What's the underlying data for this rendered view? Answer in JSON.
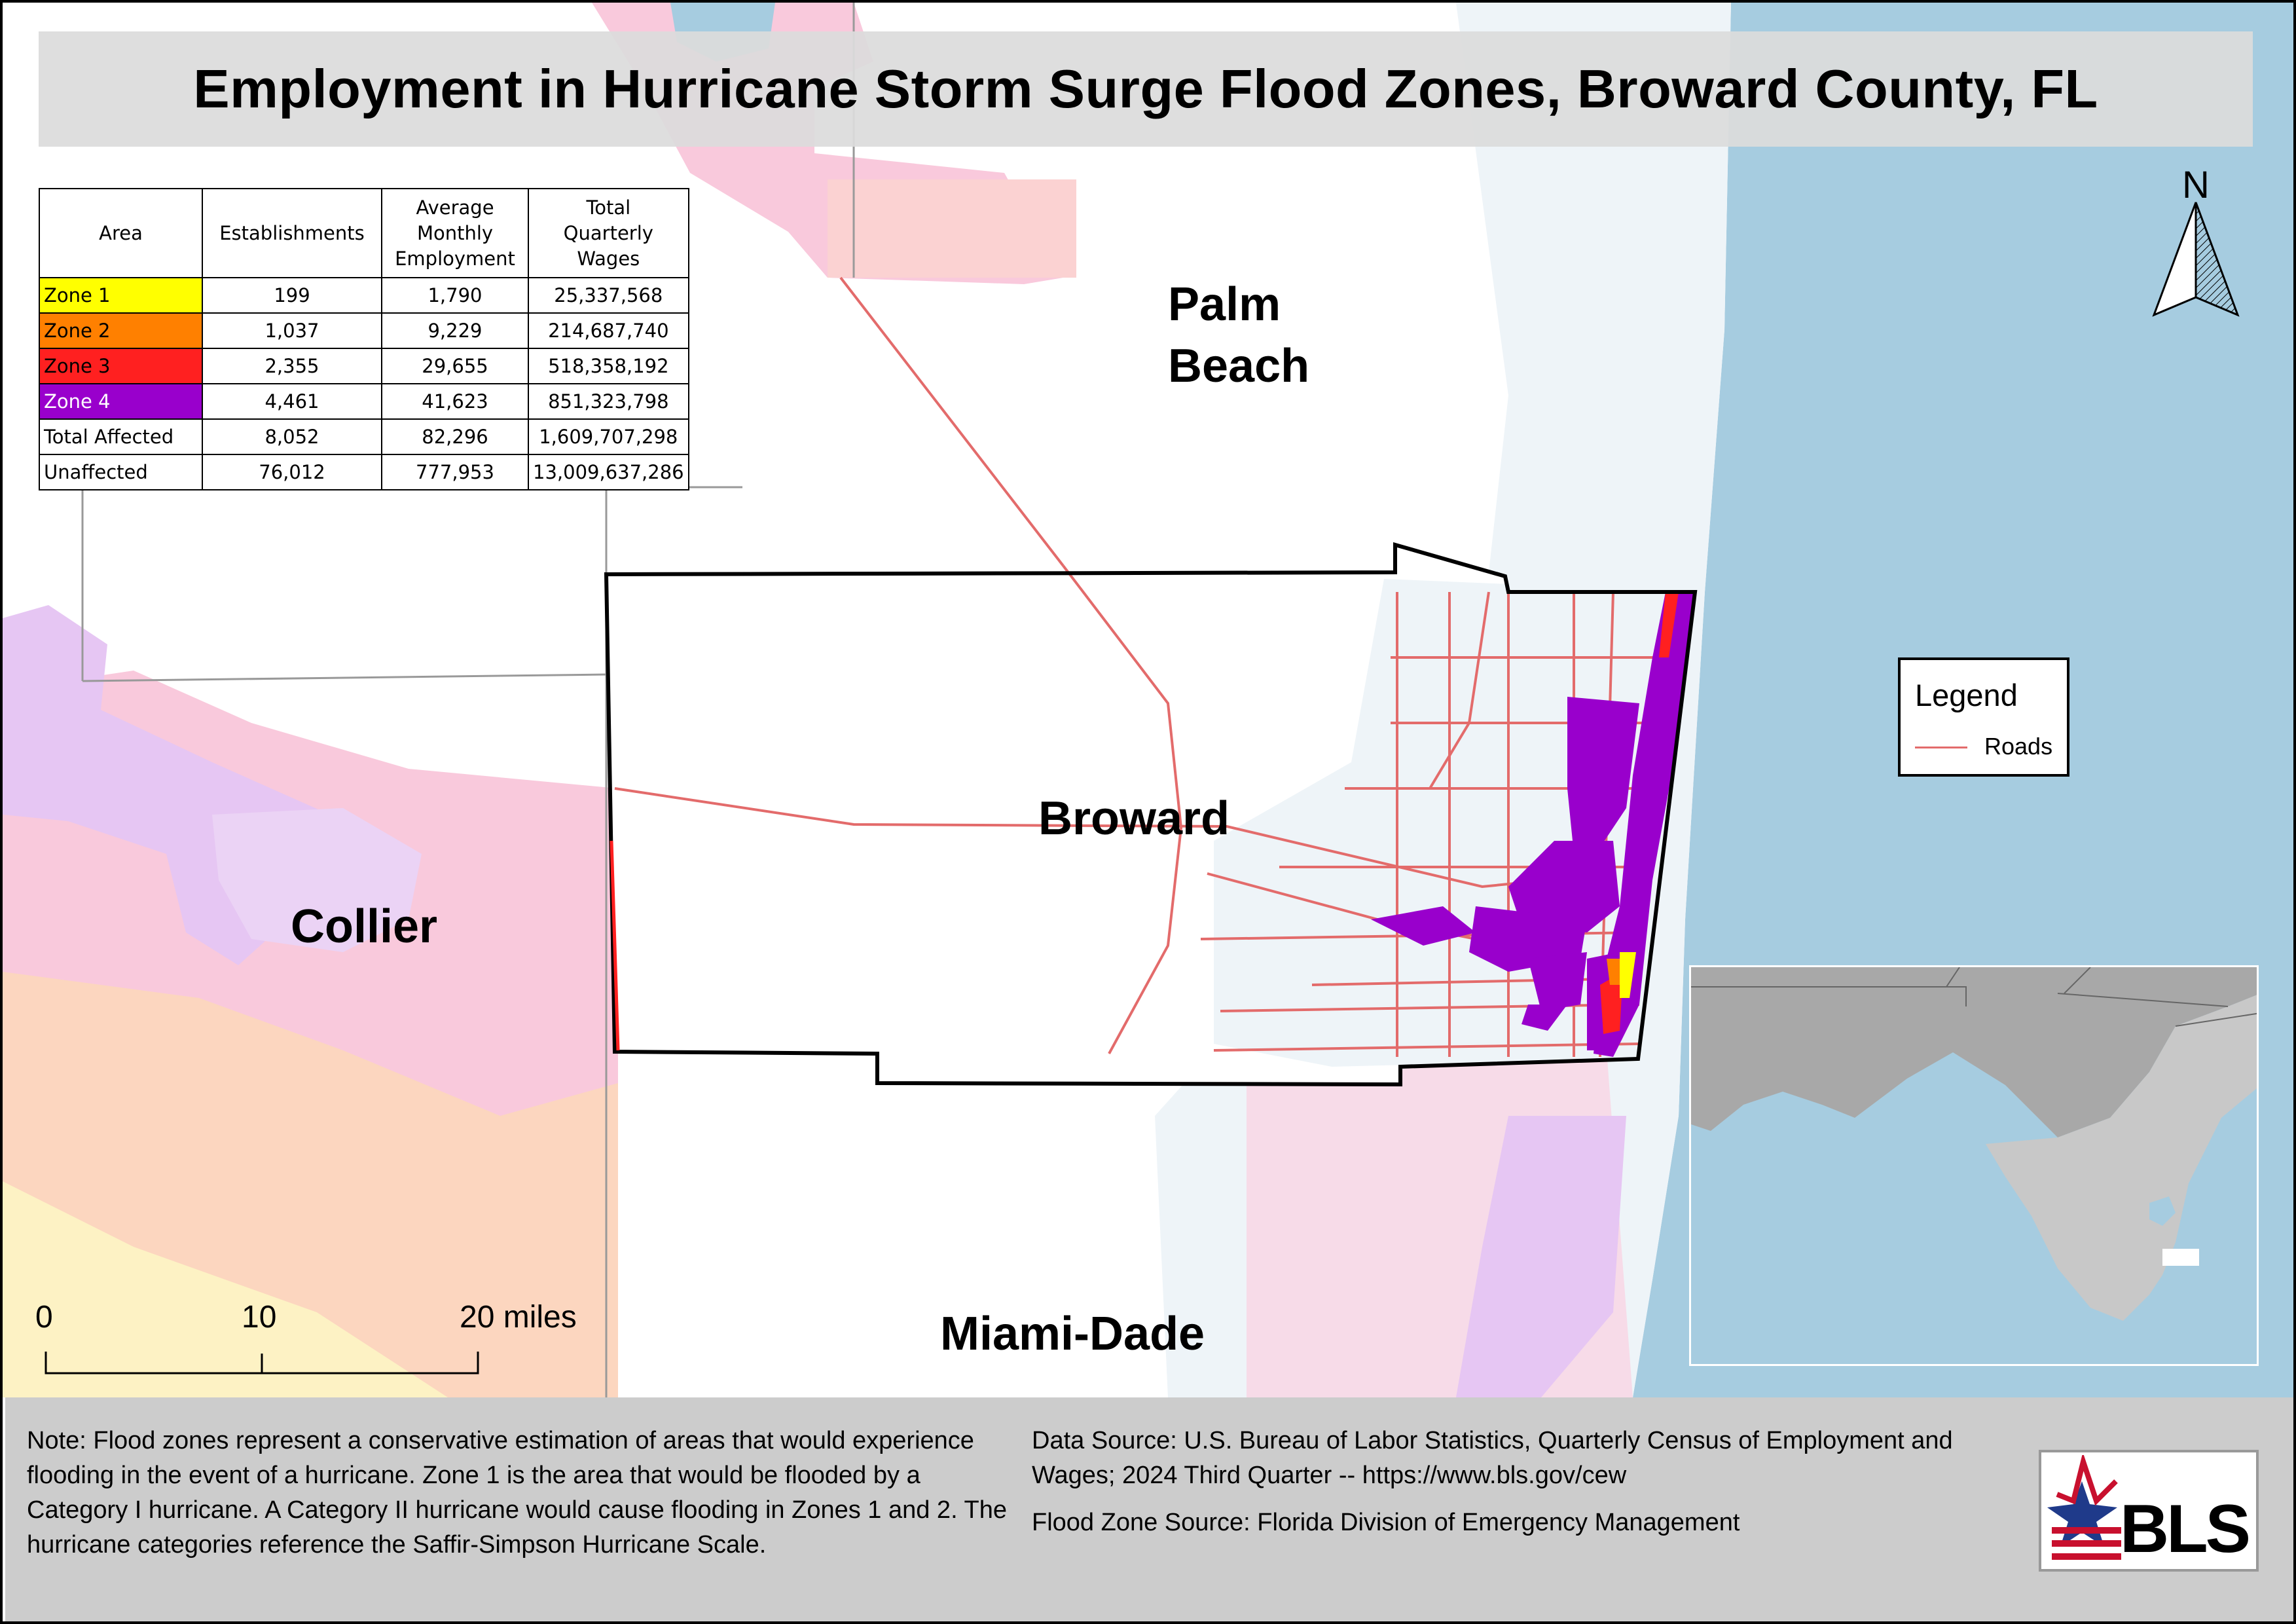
{
  "title": "Employment in Hurricane Storm Surge Flood Zones, Broward County, FL",
  "table": {
    "headers": [
      "Area",
      "Establishments",
      "Average Monthly Employment",
      "Total Quarterly Wages"
    ],
    "rows": [
      {
        "area": "Zone 1",
        "establishments": "199",
        "employment": "1,790",
        "wages": "25,337,568",
        "color": "#ffff00",
        "text_color": "#000000"
      },
      {
        "area": "Zone 2",
        "establishments": "1,037",
        "employment": "9,229",
        "wages": "214,687,740",
        "color": "#ff8000",
        "text_color": "#000000"
      },
      {
        "area": "Zone 3",
        "establishments": "2,355",
        "employment": "29,655",
        "wages": "518,358,192",
        "color": "#ff2020",
        "text_color": "#000000"
      },
      {
        "area": "Zone 4",
        "establishments": "4,461",
        "employment": "41,623",
        "wages": "851,323,798",
        "color": "#9900cc",
        "text_color": "#ffffff"
      },
      {
        "area": "Total Affected",
        "establishments": "8,052",
        "employment": "82,296",
        "wages": "1,609,707,298",
        "color": "#ffffff",
        "text_color": "#000000"
      },
      {
        "area": "Unaffected",
        "establishments": "76,012",
        "employment": "777,953",
        "wages": "13,009,637,286",
        "color": "#ffffff",
        "text_color": "#000000"
      }
    ]
  },
  "labels": {
    "palm_beach_line1": "Palm",
    "palm_beach_line2": "Beach",
    "broward": "Broward",
    "collier": "Collier",
    "miami_dade": "Miami-Dade"
  },
  "north_arrow": "N",
  "legend": {
    "title": "Legend",
    "items": [
      {
        "label": "Roads",
        "color": "#e36b6b"
      }
    ]
  },
  "scale_bar": {
    "ticks": [
      "0",
      "10",
      "20 miles"
    ]
  },
  "note": "Note: Flood zones represent a conservative estimation of areas that would experience flooding in the event of a hurricane. Zone 1 is the area that would be flooded by a Category I hurricane. A Category II hurricane would cause flooding in Zones 1 and 2. The hurricane categories reference the Saffir-Simpson Hurricane Scale.",
  "data_source": "Data Source: U.S. Bureau of Labor Statistics, Quarterly Census of Employment and Wages; 2024 Third Quarter -- https://www.bls.gov/cew",
  "flood_source": "Flood Zone Source: Florida Division of Emergency Management",
  "logo_text": "BLS",
  "colors": {
    "ocean": "#a6cce0",
    "roads": "#e36b6b",
    "zone_pink": "#f9c9dc",
    "zone_lavender": "#e6c6f3",
    "zone_orange": "#fcd6bf",
    "zone_yellow": "#fdf2c4",
    "land_gray": "#a8a8a8"
  }
}
